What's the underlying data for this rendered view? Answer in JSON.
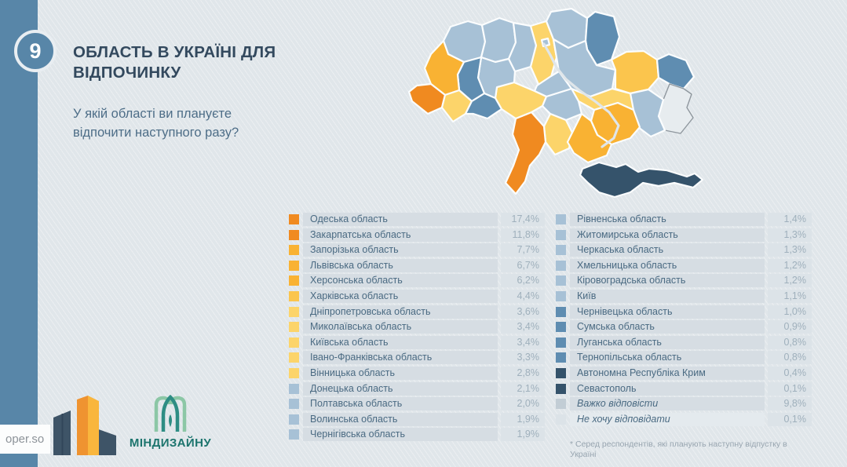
{
  "slide": {
    "number": "9",
    "title": "ОБЛАСТЬ В УКРАЇНІ ДЛЯ ВІДПОЧИНКУ",
    "subtitle": "У якій області ви плануєте відпочити наступного разу?"
  },
  "footnote": "* Серед респондентів, які планують наступну  відпустку в Україні",
  "footer": {
    "watermark": "oper.so",
    "brand": "МІНДИЗАЙНУ"
  },
  "palette": {
    "tiers": {
      "orange": "#f08a20",
      "amber": "#f9b233",
      "amber_light": "#fbc54d",
      "yellow": "#fcd46a",
      "blue_light": "#a7c1d6",
      "blue_mid": "#5f8db1",
      "navy": "#35536b",
      "gray_mid": "#c2cdd5",
      "gray_light": "#dce3e8"
    },
    "sidebar": "#5886a8",
    "background": "#e0e6ea",
    "occupied_fill": "#e7ecef",
    "occupied_stroke": "#8f979e"
  },
  "lists": {
    "left": [
      {
        "label": "Одеська область",
        "value": "17,4%",
        "tier": "orange"
      },
      {
        "label": "Закарпатська область",
        "value": "11,8%",
        "tier": "orange"
      },
      {
        "label": "Запорізька область",
        "value": "7,7%",
        "tier": "amber"
      },
      {
        "label": "Львівська область",
        "value": "6,7%",
        "tier": "amber"
      },
      {
        "label": "Херсонська область",
        "value": "6,2%",
        "tier": "amber"
      },
      {
        "label": "Харківська область",
        "value": "4,4%",
        "tier": "amber_light"
      },
      {
        "label": "Дніпропетровська область",
        "value": "3,6%",
        "tier": "yellow"
      },
      {
        "label": "Миколаївська область",
        "value": "3,4%",
        "tier": "yellow"
      },
      {
        "label": "Київська область",
        "value": "3,4%",
        "tier": "yellow"
      },
      {
        "label": "Івано-Франківська область",
        "value": "3,3%",
        "tier": "yellow"
      },
      {
        "label": "Вінницька область",
        "value": "2,8%",
        "tier": "yellow"
      },
      {
        "label": "Донецька область",
        "value": "2,1%",
        "tier": "blue_light"
      },
      {
        "label": "Полтавська область",
        "value": "2,0%",
        "tier": "blue_light"
      },
      {
        "label": "Волинська область",
        "value": "1,9%",
        "tier": "blue_light"
      },
      {
        "label": "Чернігівська область",
        "value": "1,9%",
        "tier": "blue_light"
      }
    ],
    "right": [
      {
        "label": "Рівненська область",
        "value": "1,4%",
        "tier": "blue_light"
      },
      {
        "label": "Житомирська область",
        "value": "1,3%",
        "tier": "blue_light"
      },
      {
        "label": "Черкаська область",
        "value": "1,3%",
        "tier": "blue_light"
      },
      {
        "label": "Хмельницька область",
        "value": "1,2%",
        "tier": "blue_light"
      },
      {
        "label": "Кіровоградська область",
        "value": "1,2%",
        "tier": "blue_light"
      },
      {
        "label": "Київ",
        "value": "1,1%",
        "tier": "blue_light"
      },
      {
        "label": "Чернівецька область",
        "value": "1,0%",
        "tier": "blue_mid"
      },
      {
        "label": "Сумська область",
        "value": "0,9%",
        "tier": "blue_mid"
      },
      {
        "label": "Луганська область",
        "value": "0,8%",
        "tier": "blue_mid"
      },
      {
        "label": "Тернопільська область",
        "value": "0,8%",
        "tier": "blue_mid"
      },
      {
        "label": "Автономна Республіка Крим",
        "value": "0,4%",
        "tier": "navy"
      },
      {
        "label": "Севастополь",
        "value": "0,1%",
        "tier": "navy"
      },
      {
        "label": "Важко відповісти",
        "value": "9,8%",
        "tier": "gray_mid",
        "em": true
      },
      {
        "label": "Не хочу відповідати",
        "value": "0,1%",
        "tier": "gray_light",
        "em": true,
        "muted": true
      }
    ]
  },
  "map": {
    "region_tiers": {
      "volyn": "blue_light",
      "rivne": "blue_light",
      "zhytomyr": "blue_light",
      "kyiv-oblast": "yellow",
      "kyiv-city": "blue_light",
      "chernihiv": "blue_light",
      "sumy": "blue_mid",
      "poltava": "blue_light",
      "kharkiv": "amber_light",
      "luhansk": "blue_mid",
      "donetsk": "blue_light",
      "zaporizhzhia": "amber",
      "dnipropetrovsk": "yellow",
      "kirovohrad": "blue_light",
      "cherkasy": "blue_light",
      "mykolaiv": "yellow",
      "kherson": "amber",
      "odesa": "orange",
      "vinnytsia": "yellow",
      "khmelnytskyi": "blue_light",
      "ternopil": "blue_mid",
      "lviv": "amber",
      "zakarpattia": "orange",
      "ivano-frankivsk": "yellow",
      "chernivtsi": "blue_mid",
      "crimea": "navy"
    }
  },
  "chart_data": {
    "type": "choropleth",
    "title": "ОБЛАСТЬ В УКРАЇНІ ДЛЯ ВІДПОЧИНКУ",
    "question": "У якій області ви плануєте відпочити наступного разу?",
    "unit": "%",
    "note": "* Серед респондентів, які планують наступну  відпустку в Україні",
    "legend_position": "two-column ranked list below map",
    "regions": [
      {
        "name": "Одеська область",
        "value": 17.4
      },
      {
        "name": "Закарпатська область",
        "value": 11.8
      },
      {
        "name": "Запорізька область",
        "value": 7.7
      },
      {
        "name": "Львівська область",
        "value": 6.7
      },
      {
        "name": "Херсонська область",
        "value": 6.2
      },
      {
        "name": "Харківська область",
        "value": 4.4
      },
      {
        "name": "Дніпропетровська область",
        "value": 3.6
      },
      {
        "name": "Миколаївська область",
        "value": 3.4
      },
      {
        "name": "Київська область",
        "value": 3.4
      },
      {
        "name": "Івано-Франківська область",
        "value": 3.3
      },
      {
        "name": "Вінницька область",
        "value": 2.8
      },
      {
        "name": "Донецька область",
        "value": 2.1
      },
      {
        "name": "Полтавська область",
        "value": 2.0
      },
      {
        "name": "Волинська область",
        "value": 1.9
      },
      {
        "name": "Чернігівська область",
        "value": 1.9
      },
      {
        "name": "Рівненська область",
        "value": 1.4
      },
      {
        "name": "Житомирська область",
        "value": 1.3
      },
      {
        "name": "Черкаська область",
        "value": 1.3
      },
      {
        "name": "Хмельницька область",
        "value": 1.2
      },
      {
        "name": "Кіровоградська область",
        "value": 1.2
      },
      {
        "name": "Київ",
        "value": 1.1
      },
      {
        "name": "Чернівецька область",
        "value": 1.0
      },
      {
        "name": "Сумська область",
        "value": 0.9
      },
      {
        "name": "Луганська область",
        "value": 0.8
      },
      {
        "name": "Тернопільська область",
        "value": 0.8
      },
      {
        "name": "Автономна Республіка Крим",
        "value": 0.4
      },
      {
        "name": "Севастополь",
        "value": 0.1
      },
      {
        "name": "Важко відповісти",
        "value": 9.8
      },
      {
        "name": "Не хочу відповідати",
        "value": 0.1
      }
    ]
  }
}
